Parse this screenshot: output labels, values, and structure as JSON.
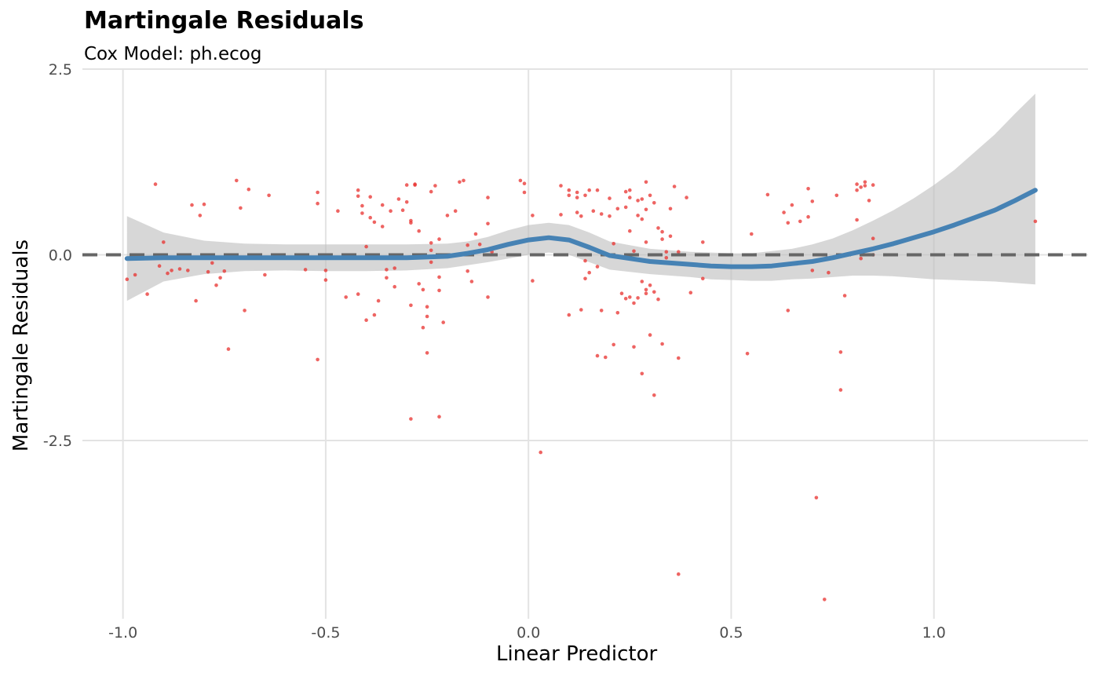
{
  "chart_data": {
    "type": "scatter",
    "title": "Martingale Residuals",
    "subtitle": "Cox Model: ph.ecog",
    "xlabel": "Linear Predictor",
    "ylabel": "Martingale Residuals",
    "xlim": [
      -1.1,
      1.38
    ],
    "ylim": [
      -4.9,
      2.5
    ],
    "x_ticks": [
      -1.0,
      -0.5,
      0.0,
      0.5,
      1.0
    ],
    "x_tick_labels": [
      "-1.0",
      "-0.5",
      "0.0",
      "0.5",
      "1.0"
    ],
    "y_ticks": [
      2.5,
      0.0,
      -2.5
    ],
    "y_tick_labels": [
      "2.5",
      "0.0",
      "-2.5"
    ],
    "grid": true,
    "reference_line": {
      "y": 0,
      "style": "dashed",
      "color": "#666666"
    },
    "colors": {
      "points": "#E8302E",
      "smooth": "#4682B4",
      "ribbon": "#BEBEBE",
      "grid": "#E3E3E3",
      "axis_text": "#4D4D4D"
    },
    "points": [
      [
        -0.99,
        -0.33
      ],
      [
        -0.97,
        -0.27
      ],
      [
        -0.94,
        -0.53
      ],
      [
        -0.92,
        0.95
      ],
      [
        -0.91,
        -0.15
      ],
      [
        -0.9,
        0.17
      ],
      [
        -0.89,
        -0.25
      ],
      [
        -0.88,
        -0.21
      ],
      [
        -0.86,
        -0.19
      ],
      [
        -0.84,
        -0.21
      ],
      [
        -0.83,
        0.67
      ],
      [
        -0.82,
        -0.62
      ],
      [
        -0.81,
        0.53
      ],
      [
        -0.8,
        0.68
      ],
      [
        -0.79,
        -0.23
      ],
      [
        -0.78,
        -0.11
      ],
      [
        -0.77,
        -0.41
      ],
      [
        -0.76,
        -0.31
      ],
      [
        -0.75,
        -0.22
      ],
      [
        -0.74,
        -1.27
      ],
      [
        -0.72,
        1.0
      ],
      [
        -0.71,
        0.63
      ],
      [
        -0.7,
        -0.75
      ],
      [
        -0.69,
        0.88
      ],
      [
        -0.65,
        -0.27
      ],
      [
        -0.64,
        0.8
      ],
      [
        -0.55,
        -0.2
      ],
      [
        -0.52,
        0.84
      ],
      [
        -0.52,
        0.69
      ],
      [
        -0.52,
        -1.41
      ],
      [
        -0.5,
        -0.21
      ],
      [
        -0.5,
        -0.34
      ],
      [
        -0.47,
        0.59
      ],
      [
        -0.45,
        -0.57
      ],
      [
        -0.42,
        -0.53
      ],
      [
        -0.42,
        0.87
      ],
      [
        -0.42,
        0.79
      ],
      [
        -0.41,
        0.66
      ],
      [
        -0.41,
        0.56
      ],
      [
        -0.4,
        0.11
      ],
      [
        -0.4,
        -0.88
      ],
      [
        -0.39,
        0.78
      ],
      [
        -0.39,
        0.5
      ],
      [
        -0.38,
        0.44
      ],
      [
        -0.38,
        -0.81
      ],
      [
        -0.37,
        -0.62
      ],
      [
        -0.36,
        0.67
      ],
      [
        -0.36,
        0.38
      ],
      [
        -0.35,
        -0.31
      ],
      [
        -0.35,
        -0.2
      ],
      [
        -0.34,
        0.59
      ],
      [
        -0.33,
        -0.18
      ],
      [
        -0.33,
        -0.43
      ],
      [
        -0.32,
        0.75
      ],
      [
        -0.31,
        0.6
      ],
      [
        -0.3,
        0.94
      ],
      [
        -0.3,
        0.71
      ],
      [
        -0.29,
        0.46
      ],
      [
        -0.29,
        0.43
      ],
      [
        -0.29,
        -0.68
      ],
      [
        -0.29,
        -2.21
      ],
      [
        -0.28,
        0.95
      ],
      [
        -0.28,
        0.94
      ],
      [
        -0.27,
        -0.39
      ],
      [
        -0.27,
        0.32
      ],
      [
        -0.26,
        -0.98
      ],
      [
        -0.26,
        -0.47
      ],
      [
        -0.25,
        -1.32
      ],
      [
        -0.25,
        -0.7
      ],
      [
        -0.25,
        -0.83
      ],
      [
        -0.24,
        0.85
      ],
      [
        -0.24,
        0.16
      ],
      [
        -0.24,
        0.06
      ],
      [
        -0.24,
        -0.1
      ],
      [
        -0.23,
        0.93
      ],
      [
        -0.22,
        0.21
      ],
      [
        -0.22,
        -0.3
      ],
      [
        -0.22,
        -0.48
      ],
      [
        -0.22,
        -2.18
      ],
      [
        -0.21,
        -0.91
      ],
      [
        -0.2,
        0.53
      ],
      [
        -0.18,
        0.59
      ],
      [
        -0.17,
        0.98
      ],
      [
        -0.16,
        1.0
      ],
      [
        -0.15,
        0.13
      ],
      [
        -0.15,
        -0.22
      ],
      [
        -0.14,
        -0.36
      ],
      [
        -0.13,
        0.28
      ],
      [
        -0.12,
        0.14
      ],
      [
        -0.1,
        0.77
      ],
      [
        -0.1,
        0.42
      ],
      [
        -0.1,
        -0.57
      ],
      [
        -0.09,
        0.04
      ],
      [
        -0.02,
        1.0
      ],
      [
        -0.01,
        0.96
      ],
      [
        -0.01,
        0.84
      ],
      [
        0.01,
        0.53
      ],
      [
        0.01,
        -0.35
      ],
      [
        0.03,
        -2.66
      ],
      [
        0.08,
        0.54
      ],
      [
        0.08,
        0.93
      ],
      [
        0.1,
        0.87
      ],
      [
        0.1,
        0.8
      ],
      [
        0.1,
        -0.81
      ],
      [
        0.12,
        0.84
      ],
      [
        0.12,
        0.77
      ],
      [
        0.12,
        0.57
      ],
      [
        0.13,
        0.52
      ],
      [
        0.13,
        -0.74
      ],
      [
        0.14,
        0.8
      ],
      [
        0.14,
        -0.08
      ],
      [
        0.14,
        -0.32
      ],
      [
        0.15,
        0.87
      ],
      [
        0.15,
        -0.24
      ],
      [
        0.16,
        0.59
      ],
      [
        0.17,
        -0.16
      ],
      [
        0.17,
        -1.36
      ],
      [
        0.17,
        0.87
      ],
      [
        0.18,
        0.55
      ],
      [
        0.18,
        -0.75
      ],
      [
        0.19,
        -1.38
      ],
      [
        0.2,
        0.76
      ],
      [
        0.2,
        0.52
      ],
      [
        0.21,
        0.15
      ],
      [
        0.21,
        -1.21
      ],
      [
        0.22,
        -0.78
      ],
      [
        0.22,
        0.62
      ],
      [
        0.23,
        -0.52
      ],
      [
        0.24,
        0.85
      ],
      [
        0.24,
        0.64
      ],
      [
        0.24,
        -0.59
      ],
      [
        0.25,
        0.77
      ],
      [
        0.25,
        0.87
      ],
      [
        0.25,
        0.32
      ],
      [
        0.25,
        -0.57
      ],
      [
        0.26,
        0.05
      ],
      [
        0.26,
        -0.65
      ],
      [
        0.26,
        -1.24
      ],
      [
        0.27,
        0.73
      ],
      [
        0.27,
        0.53
      ],
      [
        0.27,
        -0.58
      ],
      [
        0.28,
        0.75
      ],
      [
        0.28,
        0.48
      ],
      [
        0.28,
        -1.6
      ],
      [
        0.28,
        -0.36
      ],
      [
        0.29,
        0.98
      ],
      [
        0.29,
        0.61
      ],
      [
        0.29,
        0.17
      ],
      [
        0.29,
        -0.47
      ],
      [
        0.29,
        -0.52
      ],
      [
        0.3,
        0.8
      ],
      [
        0.3,
        -0.41
      ],
      [
        0.3,
        -1.08
      ],
      [
        0.31,
        0.7
      ],
      [
        0.31,
        -0.5
      ],
      [
        0.31,
        -1.89
      ],
      [
        0.32,
        0.36
      ],
      [
        0.32,
        -0.6
      ],
      [
        0.33,
        0.31
      ],
      [
        0.33,
        0.21
      ],
      [
        0.33,
        -1.2
      ],
      [
        0.34,
        -0.04
      ],
      [
        0.34,
        0.04
      ],
      [
        0.35,
        0.25
      ],
      [
        0.35,
        0.62
      ],
      [
        0.36,
        0.92
      ],
      [
        0.37,
        0.04
      ],
      [
        0.37,
        -4.3
      ],
      [
        0.37,
        -1.39
      ],
      [
        0.39,
        0.77
      ],
      [
        0.4,
        -0.51
      ],
      [
        0.43,
        0.17
      ],
      [
        0.43,
        -0.32
      ],
      [
        0.54,
        -1.33
      ],
      [
        0.55,
        0.28
      ],
      [
        0.59,
        0.81
      ],
      [
        0.63,
        0.57
      ],
      [
        0.64,
        0.43
      ],
      [
        0.64,
        -0.75
      ],
      [
        0.65,
        0.67
      ],
      [
        0.67,
        0.45
      ],
      [
        0.69,
        0.89
      ],
      [
        0.69,
        0.51
      ],
      [
        0.7,
        0.72
      ],
      [
        0.7,
        -0.21
      ],
      [
        0.71,
        -3.27
      ],
      [
        0.73,
        -4.64
      ],
      [
        0.74,
        -0.24
      ],
      [
        0.76,
        0.8
      ],
      [
        0.77,
        -1.82
      ],
      [
        0.77,
        -1.31
      ],
      [
        0.78,
        -0.55
      ],
      [
        0.81,
        0.95
      ],
      [
        0.81,
        0.87
      ],
      [
        0.81,
        0.47
      ],
      [
        0.82,
        0.91
      ],
      [
        0.82,
        -0.05
      ],
      [
        0.83,
        0.98
      ],
      [
        0.83,
        0.93
      ],
      [
        0.84,
        0.73
      ],
      [
        0.85,
        0.94
      ],
      [
        0.85,
        0.22
      ],
      [
        0.85,
        0.0
      ],
      [
        1.25,
        0.45
      ]
    ],
    "smooth": {
      "x": [
        -0.99,
        -0.9,
        -0.8,
        -0.7,
        -0.6,
        -0.5,
        -0.4,
        -0.3,
        -0.2,
        -0.15,
        -0.1,
        -0.05,
        0.0,
        0.05,
        0.1,
        0.15,
        0.2,
        0.25,
        0.3,
        0.35,
        0.4,
        0.45,
        0.5,
        0.55,
        0.6,
        0.65,
        0.7,
        0.75,
        0.8,
        0.85,
        0.9,
        0.95,
        1.0,
        1.05,
        1.1,
        1.15,
        1.2,
        1.25
      ],
      "y": [
        -0.05,
        -0.04,
        -0.04,
        -0.04,
        -0.04,
        -0.04,
        -0.04,
        -0.04,
        -0.02,
        0.02,
        0.07,
        0.14,
        0.2,
        0.23,
        0.2,
        0.1,
        -0.01,
        -0.05,
        -0.09,
        -0.11,
        -0.13,
        -0.15,
        -0.16,
        -0.16,
        -0.15,
        -0.12,
        -0.09,
        -0.04,
        0.02,
        0.08,
        0.15,
        0.23,
        0.31,
        0.4,
        0.5,
        0.6,
        0.73,
        0.87
      ],
      "lower": [
        -0.62,
        -0.36,
        -0.26,
        -0.22,
        -0.21,
        -0.22,
        -0.22,
        -0.21,
        -0.18,
        -0.14,
        -0.1,
        -0.05,
        0.0,
        0.03,
        0.0,
        -0.1,
        -0.2,
        -0.23,
        -0.26,
        -0.28,
        -0.3,
        -0.33,
        -0.34,
        -0.35,
        -0.35,
        -0.33,
        -0.32,
        -0.3,
        -0.28,
        -0.28,
        -0.29,
        -0.31,
        -0.33,
        -0.34,
        -0.35,
        -0.36,
        -0.38,
        -0.4
      ],
      "upper": [
        0.52,
        0.3,
        0.19,
        0.15,
        0.14,
        0.14,
        0.14,
        0.14,
        0.15,
        0.18,
        0.24,
        0.33,
        0.4,
        0.43,
        0.4,
        0.3,
        0.18,
        0.13,
        0.08,
        0.06,
        0.04,
        0.03,
        0.02,
        0.02,
        0.05,
        0.08,
        0.14,
        0.22,
        0.33,
        0.46,
        0.6,
        0.76,
        0.94,
        1.14,
        1.38,
        1.62,
        1.9,
        2.17
      ]
    }
  }
}
